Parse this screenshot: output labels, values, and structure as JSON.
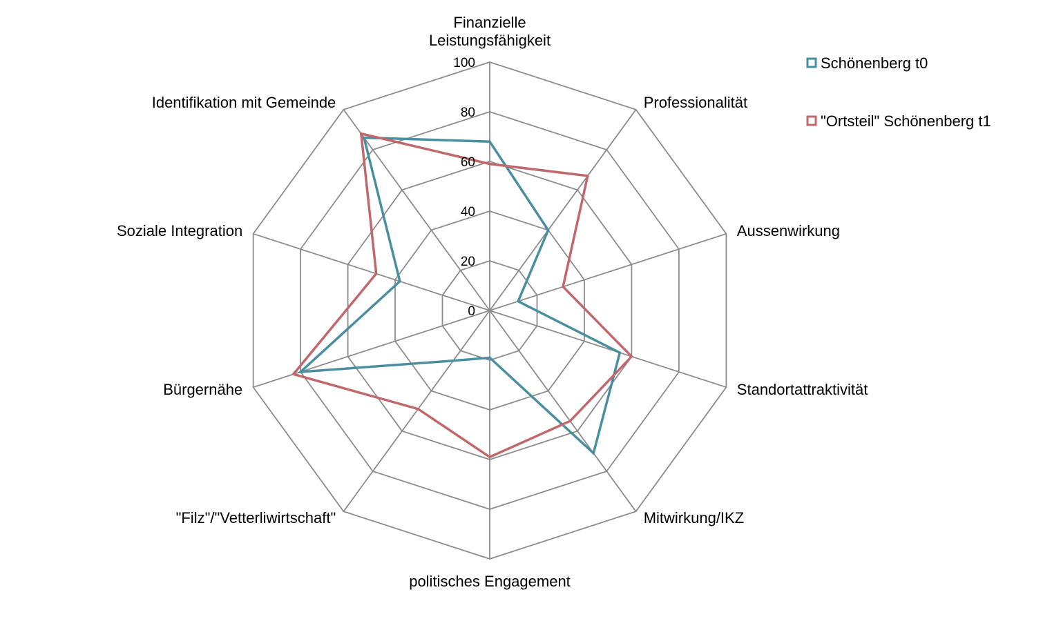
{
  "chart_data": {
    "type": "radar",
    "categories": [
      [
        "Finanzielle",
        "Leistungsfähigkeit"
      ],
      [
        "Professionalität"
      ],
      [
        "Aussenwirkung"
      ],
      [
        "Standortattraktivität"
      ],
      [
        "Mitwirkung/IKZ"
      ],
      [
        "politisches Engagement"
      ],
      [
        "\"Filz\"/\"Vetterliwirtschaft\""
      ],
      [
        "Bürgernähe"
      ],
      [
        "Soziale Integration"
      ],
      [
        "Identifikation mit Gemeinde"
      ]
    ],
    "ticks": [
      "0",
      "20",
      "40",
      "60",
      "80",
      "100"
    ],
    "rlim": [
      0,
      100
    ],
    "grid": true,
    "legend_position": "top-right",
    "series": [
      {
        "name": "Schönenberg t0",
        "color": "#4a8fa0",
        "values": [
          68,
          40,
          12,
          55,
          71,
          19,
          25,
          80,
          38,
          86
        ]
      },
      {
        "name": "\"Ortsteil\" Schönenberg t1",
        "color": "#c0686b",
        "values": [
          59,
          67,
          31,
          60,
          55,
          59,
          49,
          83,
          48,
          88
        ]
      }
    ]
  }
}
